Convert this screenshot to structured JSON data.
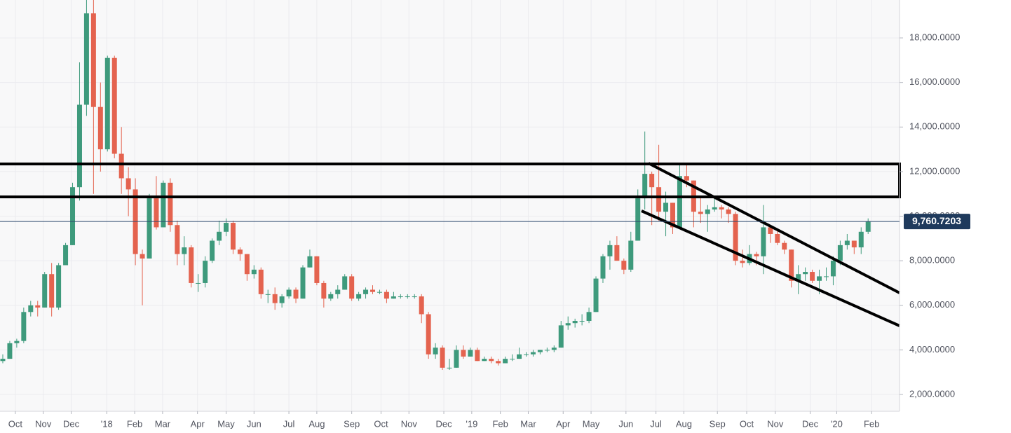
{
  "chart_data": {
    "type": "candlestick",
    "up_color": "#3e9a7c",
    "down_color": "#e4634f",
    "ylim": [
      1245,
      19700
    ],
    "yticks": [
      {
        "value": 2000,
        "label": "2,000.0000"
      },
      {
        "value": 4000,
        "label": "4,000.0000"
      },
      {
        "value": 6000,
        "label": "6,000.0000"
      },
      {
        "value": 8000,
        "label": "8,000.0000"
      },
      {
        "value": 10000,
        "label": "10,000.0000"
      },
      {
        "value": 12000,
        "label": "12,000.0000"
      },
      {
        "value": 14000,
        "label": "14,000.0000"
      },
      {
        "value": 16000,
        "label": "16,000.0000"
      },
      {
        "value": 18000,
        "label": "18,000.0000"
      }
    ],
    "xlim": [
      -0.4,
      128.5
    ],
    "xticks": [
      {
        "value": 1.8,
        "label": "Oct"
      },
      {
        "value": 5.8,
        "label": "Nov"
      },
      {
        "value": 9.8,
        "label": "Dec"
      },
      {
        "value": 14.9,
        "label": "'18"
      },
      {
        "value": 18.9,
        "label": "Feb"
      },
      {
        "value": 22.9,
        "label": "Mar"
      },
      {
        "value": 27.9,
        "label": "Apr"
      },
      {
        "value": 32,
        "label": "May"
      },
      {
        "value": 36,
        "label": "Jun"
      },
      {
        "value": 41,
        "label": "Jul"
      },
      {
        "value": 45,
        "label": "Aug"
      },
      {
        "value": 50,
        "label": "Sep"
      },
      {
        "value": 54.2,
        "label": "Oct"
      },
      {
        "value": 58.2,
        "label": "Nov"
      },
      {
        "value": 63.2,
        "label": "Dec"
      },
      {
        "value": 67.2,
        "label": "'19"
      },
      {
        "value": 71.3,
        "label": "Feb"
      },
      {
        "value": 75.3,
        "label": "Mar"
      },
      {
        "value": 80.3,
        "label": "Apr"
      },
      {
        "value": 84.3,
        "label": "May"
      },
      {
        "value": 89.3,
        "label": "Jun"
      },
      {
        "value": 93.6,
        "label": "Jul"
      },
      {
        "value": 97.6,
        "label": "Aug"
      },
      {
        "value": 102.4,
        "label": "Sep"
      },
      {
        "value": 106.6,
        "label": "Oct"
      },
      {
        "value": 110.7,
        "label": "Nov"
      },
      {
        "value": 115.7,
        "label": "Dec"
      },
      {
        "value": 119.5,
        "label": "'20"
      },
      {
        "value": 124.5,
        "label": "Feb"
      }
    ],
    "grid": true,
    "last_price": 9760.7203,
    "last_price_label": "9,760.7203",
    "open": [
      3500,
      3600,
      4300,
      4400,
      5700,
      6000,
      5900,
      7400,
      5900,
      7800,
      8700,
      11300,
      15000,
      19100,
      14900,
      13000,
      17100,
      12800,
      11700,
      11200,
      8300,
      8100,
      10800,
      9500,
      11500,
      9600,
      8300,
      8600,
      7000,
      7000,
      8000,
      8900,
      9300,
      9700,
      8500,
      8300,
      7400,
      7600,
      6500,
      6500,
      6100,
      6400,
      6700,
      6300,
      7700,
      8200,
      7000,
      6300,
      6500,
      6700,
      7300,
      6300,
      6500,
      6700,
      6600,
      6600,
      6300,
      6400,
      6400,
      6400,
      6400,
      5600,
      3800,
      4100,
      3200,
      3200,
      4000,
      3700,
      4000,
      3500,
      3600,
      3500,
      3400,
      3600,
      3600,
      3800,
      3800,
      3900,
      4000,
      4000,
      4100,
      5100,
      5200,
      5300,
      5300,
      5700,
      7200,
      8200,
      8700,
      8000,
      7600,
      8900,
      10800,
      11900,
      11300,
      10200,
      10600,
      9500,
      11800,
      11600,
      10200,
      10100,
      10300,
      10400,
      10300,
      10100,
      8000,
      7900,
      8300,
      8200,
      9500,
      9200,
      8800,
      8500,
      7100,
      7400,
      7500,
      7100,
      7300,
      7300,
      8000,
      8700,
      8900,
      8600,
      9300
    ],
    "high": [
      3800,
      4400,
      4500,
      5900,
      6200,
      6200,
      7500,
      7900,
      7900,
      8800,
      11500,
      16900,
      19700,
      19700,
      16000,
      17200,
      17200,
      14000,
      12200,
      11700,
      8500,
      11000,
      11800,
      11600,
      11700,
      9800,
      9100,
      8700,
      7400,
      8200,
      9000,
      9800,
      9900,
      9800,
      8600,
      8300,
      7800,
      7700,
      6700,
      6800,
      6500,
      6800,
      6800,
      7800,
      8500,
      8200,
      7100,
      6600,
      6900,
      7400,
      7400,
      6600,
      6800,
      6900,
      6700,
      6700,
      6600,
      6500,
      6500,
      6500,
      6500,
      5700,
      4300,
      4200,
      3600,
      4200,
      4200,
      4100,
      4100,
      3700,
      3700,
      3600,
      3700,
      3800,
      4100,
      3900,
      4000,
      4000,
      4100,
      4200,
      5300,
      5500,
      5400,
      5600,
      5900,
      7300,
      8300,
      8900,
      9100,
      8100,
      9300,
      11200,
      13800,
      12000,
      13200,
      11100,
      10600,
      12300,
      12300,
      11600,
      10900,
      10500,
      10900,
      10500,
      10400,
      10200,
      8500,
      8700,
      8400,
      10500,
      9500,
      9400,
      8900,
      8500,
      7800,
      7700,
      7600,
      7600,
      7700,
      8200,
      8900,
      9200,
      8900,
      9500,
      9900
    ],
    "low": [
      3400,
      3600,
      4100,
      4300,
      5500,
      5500,
      5900,
      5500,
      5800,
      7800,
      8700,
      10700,
      14500,
      11000,
      12000,
      12900,
      12600,
      11000,
      10000,
      7800,
      6000,
      8100,
      9400,
      9500,
      9300,
      7800,
      7800,
      6800,
      6600,
      6800,
      7900,
      8700,
      9100,
      8300,
      8000,
      7100,
      7200,
      6300,
      6100,
      5800,
      5900,
      6300,
      6100,
      6300,
      7700,
      6900,
      5900,
      6200,
      6300,
      6700,
      6200,
      6200,
      6300,
      6500,
      6500,
      6100,
      6300,
      6300,
      6300,
      6300,
      5200,
      3600,
      3600,
      3100,
      3100,
      3200,
      3600,
      3700,
      3500,
      3500,
      3400,
      3300,
      3400,
      3500,
      3600,
      3700,
      3700,
      3800,
      3900,
      3900,
      4100,
      4900,
      5000,
      5100,
      5200,
      5700,
      7000,
      7600,
      8000,
      7400,
      7500,
      8900,
      10300,
      9600,
      9800,
      9100,
      9200,
      9500,
      11300,
      9500,
      9700,
      9300,
      10200,
      9900,
      9700,
      7800,
      7700,
      7800,
      7800,
      7400,
      8800,
      8700,
      8300,
      6800,
      6500,
      7100,
      7000,
      6500,
      7100,
      6900,
      7800,
      8500,
      8300,
      8300,
      9200
    ],
    "close": [
      3600,
      4300,
      4400,
      5700,
      6000,
      5900,
      7400,
      5900,
      7800,
      8700,
      11300,
      15000,
      19100,
      14900,
      13000,
      17100,
      12800,
      11700,
      11200,
      8300,
      8100,
      10800,
      9500,
      11500,
      9600,
      8300,
      8600,
      7000,
      7000,
      8000,
      8900,
      9300,
      9700,
      8500,
      8300,
      7400,
      7600,
      6500,
      6500,
      6100,
      6400,
      6700,
      6300,
      7700,
      8200,
      7000,
      6300,
      6500,
      6700,
      7300,
      6300,
      6500,
      6700,
      6600,
      6600,
      6300,
      6400,
      6400,
      6400,
      6400,
      5600,
      3800,
      4100,
      3200,
      3200,
      4000,
      3700,
      4000,
      3500,
      3600,
      3500,
      3400,
      3600,
      3600,
      3800,
      3800,
      3900,
      4000,
      4000,
      4100,
      5100,
      5200,
      5300,
      5300,
      5700,
      7200,
      8200,
      8700,
      8000,
      7600,
      8900,
      10800,
      11900,
      11300,
      10200,
      10600,
      9500,
      11800,
      11600,
      10200,
      10100,
      10300,
      10400,
      10300,
      10100,
      8000,
      7900,
      8300,
      8200,
      9500,
      9200,
      8800,
      8500,
      7100,
      7400,
      7500,
      7100,
      7300,
      7300,
      8000,
      8700,
      8900,
      8600,
      9300,
      9760
    ]
  }
}
